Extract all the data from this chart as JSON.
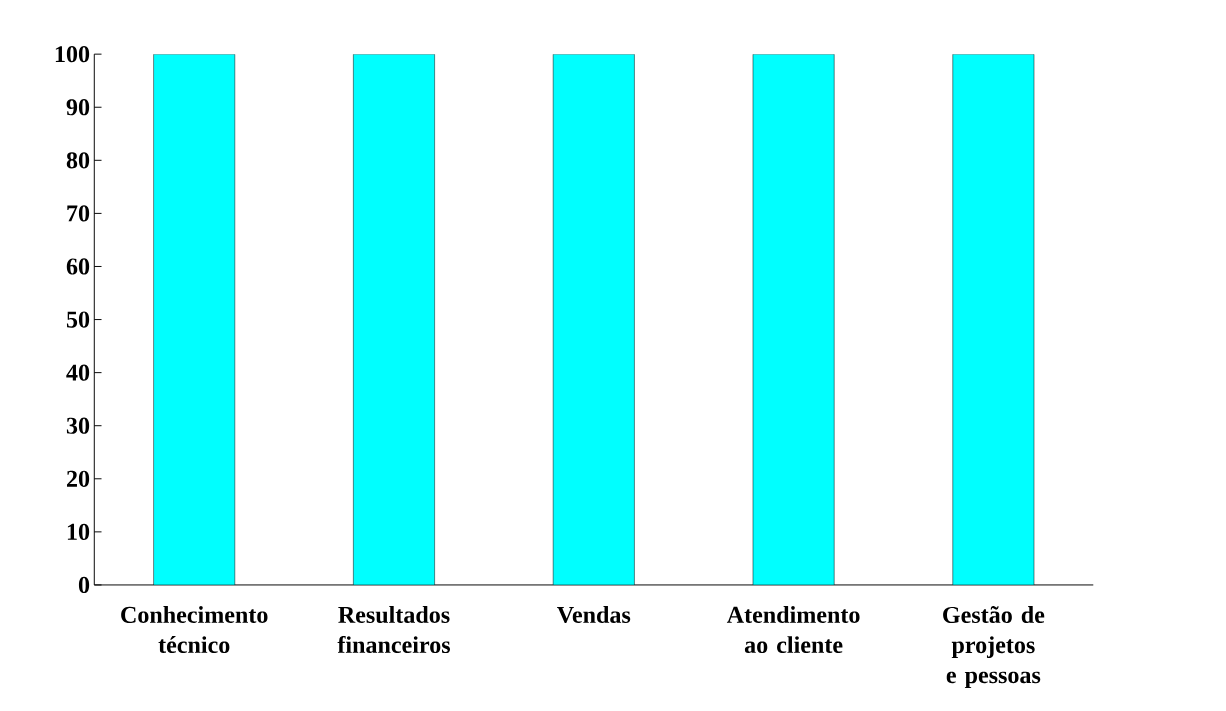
{
  "chart_data": {
    "type": "bar",
    "categories": [
      "Conhecimento técnico",
      "Resultados financeiros",
      "Vendas",
      "Atendimento ao cliente",
      "Gestão de projetos e pessoas"
    ],
    "values": [
      100,
      100,
      100,
      100,
      100
    ],
    "color": "#00ffff",
    "ylim": [
      0,
      100
    ],
    "yticks": [
      0,
      10,
      20,
      30,
      40,
      50,
      60,
      70,
      80,
      90,
      100
    ],
    "grid": false
  }
}
